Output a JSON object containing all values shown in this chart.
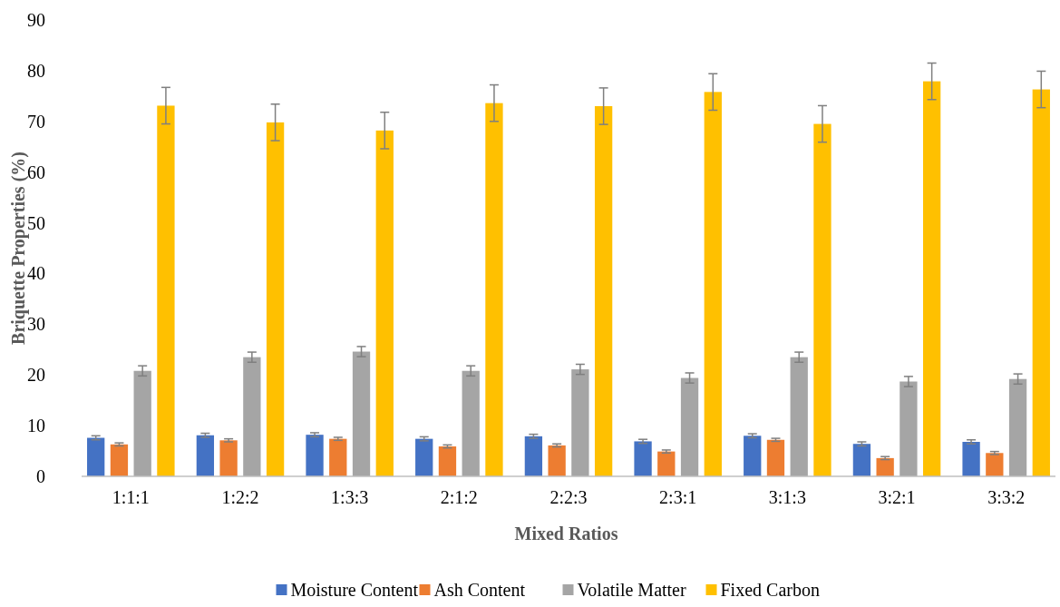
{
  "chart_data": {
    "type": "bar",
    "xlabel": "Mixed Ratios",
    "ylabel": "Briquette Properties (%)",
    "categories": [
      "1:1:1",
      "1:2:2",
      "1:3:3",
      "2:1:2",
      "2:2:3",
      "2:3:1",
      "3:1:3",
      "3:2:1",
      "3:3:2"
    ],
    "series": [
      {
        "name": "Moisture Content",
        "color": "#4472c4",
        "values": [
          7.6,
          8.1,
          8.2,
          7.4,
          7.9,
          6.9,
          8.0,
          6.4,
          6.8
        ],
        "errors": [
          0.4,
          0.4,
          0.4,
          0.4,
          0.4,
          0.4,
          0.4,
          0.4,
          0.4
        ]
      },
      {
        "name": "Ash Content",
        "color": "#ed7d31",
        "values": [
          6.3,
          7.1,
          7.4,
          5.9,
          6.1,
          4.9,
          7.2,
          3.6,
          4.6
        ],
        "errors": [
          0.3,
          0.3,
          0.3,
          0.3,
          0.3,
          0.3,
          0.3,
          0.3,
          0.3
        ]
      },
      {
        "name": "Volatile Matter",
        "color": "#a5a5a5",
        "values": [
          20.8,
          23.5,
          24.6,
          20.8,
          21.1,
          19.4,
          23.5,
          18.7,
          19.2
        ],
        "errors": [
          1,
          1,
          1,
          1,
          1,
          1,
          1,
          1,
          1
        ]
      },
      {
        "name": "Fixed Carbon",
        "color": "#ffc000",
        "values": [
          73.1,
          69.8,
          68.2,
          73.6,
          73.0,
          75.8,
          69.5,
          77.9,
          76.3
        ],
        "errors": [
          3.6,
          3.6,
          3.6,
          3.6,
          3.6,
          3.6,
          3.6,
          3.6,
          3.6
        ]
      }
    ],
    "ylim": [
      0,
      90
    ],
    "yticks": [
      0,
      10,
      20,
      30,
      40,
      50,
      60,
      70,
      80,
      90
    ],
    "grid": false,
    "legend": "bottom"
  }
}
